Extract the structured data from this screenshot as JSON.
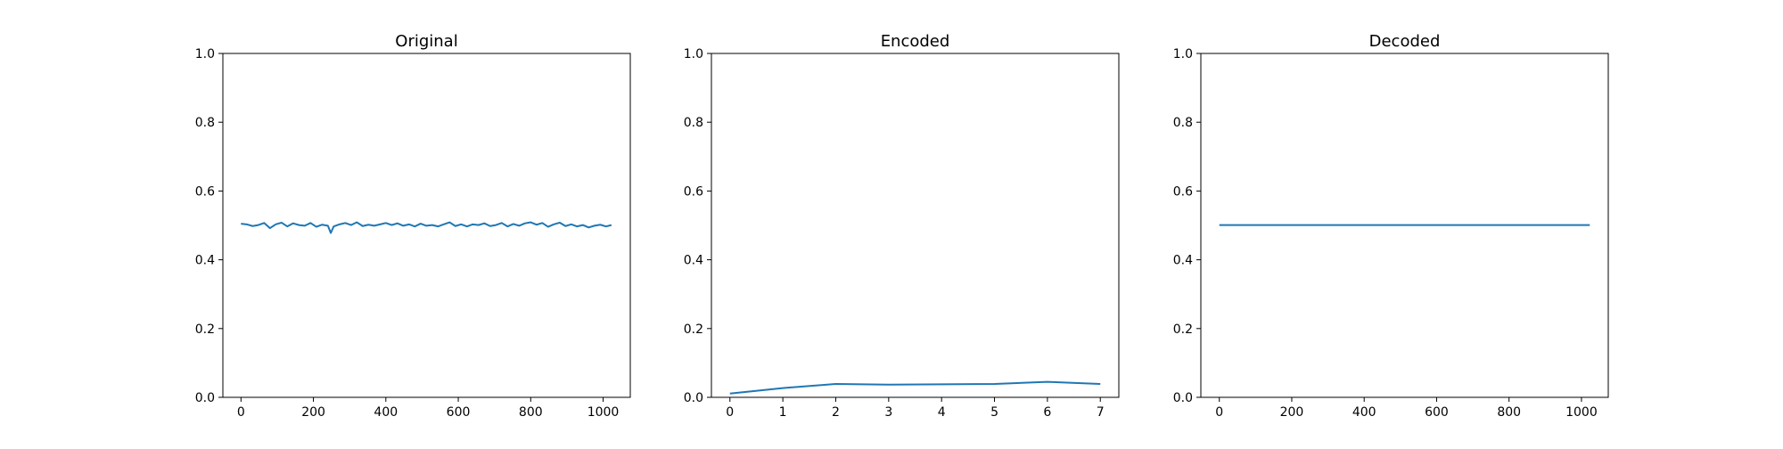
{
  "chart_data": [
    {
      "type": "line",
      "title": "Original",
      "xlabel": "",
      "ylabel": "",
      "xlim": [
        -50,
        1075
      ],
      "ylim": [
        0,
        1
      ],
      "xticks": [
        "0",
        "200",
        "400",
        "600",
        "800",
        "1000"
      ],
      "yticks": [
        "0.0",
        "0.2",
        "0.4",
        "0.6",
        "0.8",
        "1.0"
      ],
      "color": "#1f77b4",
      "grid": false,
      "series": [
        {
          "x": [
            0,
            16,
            32,
            48,
            64,
            80,
            96,
            112,
            128,
            144,
            160,
            176,
            192,
            208,
            224,
            240,
            248,
            256,
            272,
            288,
            304,
            320,
            336,
            352,
            368,
            384,
            400,
            416,
            432,
            448,
            464,
            480,
            496,
            512,
            528,
            544,
            560,
            576,
            592,
            608,
            624,
            640,
            656,
            672,
            688,
            704,
            720,
            736,
            752,
            768,
            784,
            800,
            816,
            832,
            848,
            864,
            880,
            896,
            912,
            928,
            944,
            960,
            976,
            992,
            1008,
            1023
          ],
          "values": [
            0.505,
            0.503,
            0.498,
            0.501,
            0.507,
            0.492,
            0.503,
            0.508,
            0.497,
            0.506,
            0.501,
            0.499,
            0.507,
            0.496,
            0.502,
            0.499,
            0.478,
            0.497,
            0.503,
            0.507,
            0.501,
            0.509,
            0.498,
            0.502,
            0.499,
            0.503,
            0.507,
            0.501,
            0.506,
            0.499,
            0.503,
            0.497,
            0.505,
            0.499,
            0.501,
            0.497,
            0.503,
            0.509,
            0.498,
            0.503,
            0.497,
            0.503,
            0.501,
            0.506,
            0.498,
            0.501,
            0.507,
            0.497,
            0.504,
            0.499,
            0.506,
            0.509,
            0.502,
            0.507,
            0.496,
            0.503,
            0.508,
            0.498,
            0.503,
            0.497,
            0.501,
            0.494,
            0.499,
            0.502,
            0.497,
            0.501
          ]
        }
      ]
    },
    {
      "type": "line",
      "title": "Encoded",
      "xlabel": "",
      "ylabel": "",
      "xlim": [
        -0.35,
        7.35
      ],
      "ylim": [
        0,
        1
      ],
      "xticks": [
        "0",
        "1",
        "2",
        "3",
        "4",
        "5",
        "6",
        "7"
      ],
      "yticks": [
        "0.0",
        "0.2",
        "0.4",
        "0.6",
        "0.8",
        "1.0"
      ],
      "color": "#1f77b4",
      "grid": false,
      "series": [
        {
          "x": [
            0,
            1,
            2,
            3,
            4,
            5,
            6,
            7
          ],
          "values": [
            0.011,
            0.027,
            0.039,
            0.037,
            0.038,
            0.039,
            0.045,
            0.039
          ]
        }
      ]
    },
    {
      "type": "line",
      "title": "Decoded",
      "xlabel": "",
      "ylabel": "",
      "xlim": [
        -51,
        1074
      ],
      "ylim": [
        0,
        1
      ],
      "xticks": [
        "0",
        "200",
        "400",
        "600",
        "800",
        "1000"
      ],
      "yticks": [
        "0.0",
        "0.2",
        "0.4",
        "0.6",
        "0.8",
        "1.0"
      ],
      "color": "#1f77b4",
      "grid": false,
      "series": [
        {
          "x": [
            0,
            1023
          ],
          "values": [
            0.501,
            0.501
          ]
        }
      ]
    }
  ]
}
